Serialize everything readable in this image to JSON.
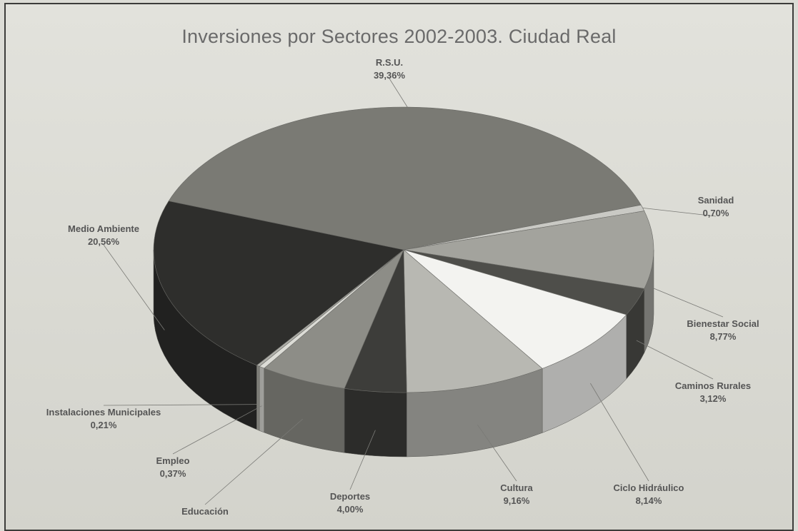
{
  "chart_data": {
    "type": "pie",
    "title": "Inversiones por Sectores 2002-2003. Ciudad Real",
    "slices": [
      {
        "name": "R.S.U.",
        "value": 39.36,
        "label": "39,36%",
        "color": "#7a7a74"
      },
      {
        "name": "Sanidad",
        "value": 0.7,
        "label": "0,70%",
        "color": "#c9c9c4"
      },
      {
        "name": "Bienestar Social",
        "value": 8.77,
        "label": "8,77%",
        "color": "#a3a39d"
      },
      {
        "name": "Caminos Rurales",
        "value": 3.12,
        "label": "3,12%",
        "color": "#4e4e4a"
      },
      {
        "name": "Ciclo Hidráulico",
        "value": 8.14,
        "label": "8,14%",
        "color": "#f3f3f0"
      },
      {
        "name": "Cultura",
        "value": 9.16,
        "label": "9,16%",
        "color": "#b8b8b2"
      },
      {
        "name": "Deportes",
        "value": 4.0,
        "label": "4,00%",
        "color": "#3d3d3a"
      },
      {
        "name": "Educación",
        "value": 5.61,
        "label": "",
        "color": "#8d8d87"
      },
      {
        "name": "Empleo",
        "value": 0.37,
        "label": "0,37%",
        "color": "#dcdcd6"
      },
      {
        "name": "Instalaciones Municipales",
        "value": 0.21,
        "label": "0,21%",
        "color": "#b0b0aa"
      },
      {
        "name": "Medio Ambiente",
        "value": 20.56,
        "label": "20,56%",
        "color": "#2e2e2c"
      }
    ],
    "legend": "none",
    "start_position": "top-left, clockwise"
  }
}
